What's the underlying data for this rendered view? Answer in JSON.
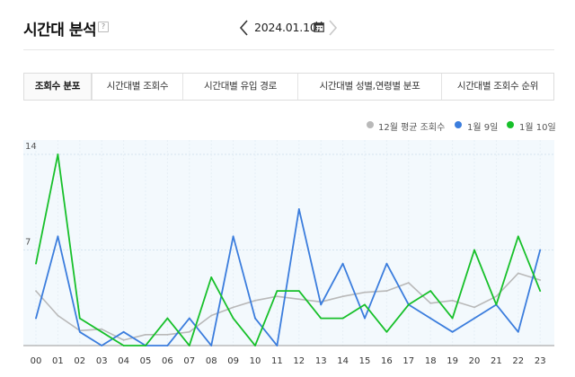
{
  "header": {
    "title": "시간대 분석",
    "help_symbol": "?",
    "date": "2024.01.10."
  },
  "icons": {
    "help": "question-mark-icon",
    "prev": "chevron-left-icon",
    "calendar": "calendar-icon",
    "next": "chevron-right-icon"
  },
  "tabs": [
    {
      "label": "조회수 분포",
      "active": true
    },
    {
      "label": "시간대별 조회수",
      "active": false
    },
    {
      "label": "시간대별 유입 경로",
      "active": false
    },
    {
      "label": "시간대별 성별,연령별 분포",
      "active": false
    },
    {
      "label": "시간대별 조회수 순위",
      "active": false
    }
  ],
  "colors": {
    "avg": "#b9b9b9",
    "jan9": "#3b7ddd",
    "jan10": "#17c02a",
    "plot_bg": "#f3f9fd",
    "grid": "#d5e4ef"
  },
  "chart_data": {
    "type": "line",
    "x": [
      "00",
      "01",
      "02",
      "03",
      "04",
      "05",
      "06",
      "07",
      "08",
      "09",
      "10",
      "11",
      "12",
      "13",
      "14",
      "15",
      "16",
      "17",
      "18",
      "19",
      "20",
      "21",
      "22",
      "23"
    ],
    "y_ticks": [
      "7",
      "14"
    ],
    "ylim": [
      0,
      14
    ],
    "grid": true,
    "legend_position": "top-right",
    "series": [
      {
        "name": "12월 평균 조회수",
        "color": "#b9b9b9",
        "values": [
          4,
          2.2,
          1.1,
          1.2,
          0.4,
          0.8,
          0.8,
          1,
          2.2,
          2.8,
          3.3,
          3.6,
          3.4,
          3.2,
          3.6,
          3.9,
          4,
          4.6,
          3.1,
          3.3,
          2.8,
          3.6,
          5.3,
          4.8
        ]
      },
      {
        "name": "1월 9일",
        "color": "#3b7ddd",
        "values": [
          2,
          8,
          1,
          0,
          1,
          0,
          0,
          2,
          0,
          8,
          2,
          0,
          10,
          3,
          6,
          2,
          6,
          3,
          2,
          1,
          2,
          3,
          1,
          7
        ]
      },
      {
        "name": "1월 10일",
        "color": "#17c02a",
        "values": [
          6,
          14,
          2,
          1,
          0,
          0,
          2,
          0,
          5,
          2,
          0,
          4,
          4,
          2,
          2,
          3,
          1,
          3,
          4,
          2,
          7,
          3,
          8,
          4
        ]
      }
    ]
  }
}
